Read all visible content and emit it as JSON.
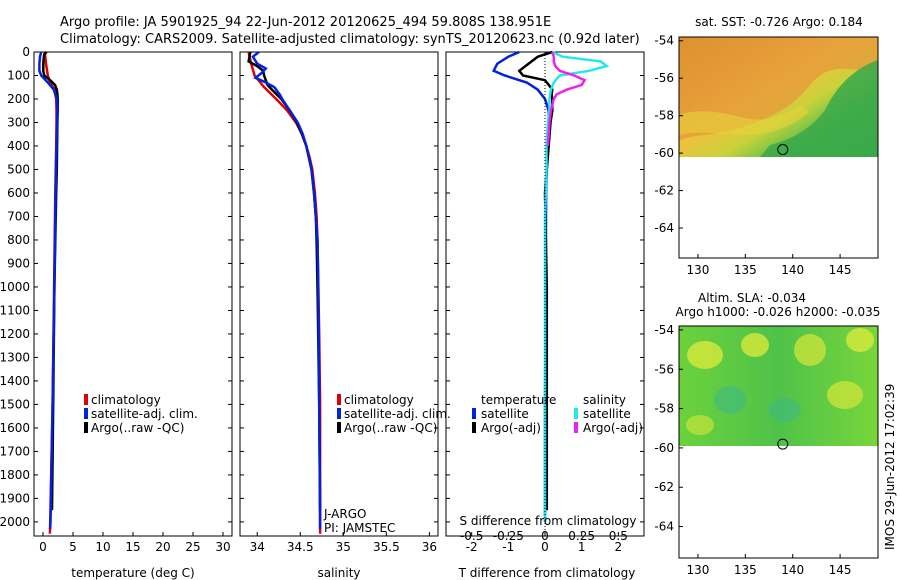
{
  "title_line1": "Argo profile: JA 5901925_94 22-Jun-2012 20120625_494 59.808S 138.951E",
  "title_line2": "Climatology: CARS2009. Satellite-adjusted climatology: synTS_20120623.nc (0.92d later)",
  "side_stamp": "IMOS 29-Jun-2012 17:02:39",
  "colors": {
    "red": "#e00000",
    "blue": "#0022dd",
    "black": "#000000",
    "cyan": "#22e6f0",
    "magenta": "#ee22ee"
  },
  "chart_data": [
    {
      "type": "line",
      "name": "temperature",
      "xlabel": "temperature (deg C)",
      "ylabel": "",
      "xlim": [
        -1.5,
        31.5
      ],
      "ylim": [
        2060,
        0
      ],
      "xticks": [
        0,
        5,
        10,
        15,
        20,
        25,
        30
      ],
      "xtick_labels": [
        "0",
        "5",
        "10",
        "15",
        "20",
        "25",
        "30"
      ],
      "yticks": [
        0,
        100,
        200,
        300,
        400,
        500,
        600,
        700,
        800,
        900,
        1000,
        1100,
        1200,
        1300,
        1400,
        1500,
        1600,
        1700,
        1800,
        1900,
        2000
      ],
      "ytick_labels": [
        "0",
        "100",
        "200",
        "300",
        "400",
        "500",
        "600",
        "700",
        "800",
        "900",
        "1000",
        "1100",
        "1200",
        "1300",
        "1400",
        "1500",
        "1600",
        "1700",
        "1800",
        "1900",
        "2000"
      ],
      "legend": [
        {
          "label": "climatology",
          "color": "red"
        },
        {
          "label": "satellite-adj. clim.",
          "color": "blue"
        },
        {
          "label": "Argo(..raw -QC)",
          "color": "black"
        }
      ],
      "series": [
        {
          "name": "climatology",
          "color": "red",
          "depth": [
            0,
            50,
            100,
            130,
            160,
            200,
            250,
            300,
            400,
            600,
            1000,
            1500,
            2000,
            2050
          ],
          "values": [
            0.3,
            0.5,
            0.8,
            1.2,
            1.9,
            2.2,
            2.25,
            2.25,
            2.2,
            2.05,
            1.85,
            1.6,
            1.2,
            1.15
          ]
        },
        {
          "name": "Argo(..raw -QC)",
          "color": "black",
          "depth": [
            0,
            10,
            30,
            50,
            80,
            100,
            120,
            140,
            160,
            180,
            200,
            250,
            300,
            400,
            500,
            600,
            1000,
            1500,
            1950
          ],
          "values": [
            0.6,
            0.2,
            0.1,
            0.05,
            0.05,
            0.2,
            1.2,
            2.0,
            2.3,
            2.4,
            2.45,
            2.45,
            2.4,
            2.35,
            2.3,
            2.2,
            1.9,
            1.7,
            1.5
          ]
        },
        {
          "name": "satellite-adj. clim.",
          "color": "blue",
          "depth": [
            0,
            20,
            50,
            80,
            100,
            130,
            160,
            200,
            250,
            300,
            400,
            600,
            1000,
            1500,
            2000,
            2030
          ],
          "values": [
            -0.3,
            -0.5,
            -0.6,
            -0.6,
            -0.3,
            0.8,
            1.8,
            2.3,
            2.4,
            2.35,
            2.25,
            2.1,
            1.9,
            1.6,
            1.25,
            1.2
          ]
        }
      ]
    },
    {
      "type": "line",
      "name": "salinity",
      "xlabel": "salinity",
      "ylabel": "",
      "xlim": [
        33.8,
        36.1
      ],
      "ylim": [
        2060,
        0
      ],
      "xticks": [
        34,
        34.5,
        35,
        35.5,
        36
      ],
      "xtick_labels": [
        "34",
        "34.5",
        "35",
        "35.5",
        "36"
      ],
      "legend": [
        {
          "label": "climatology",
          "color": "red"
        },
        {
          "label": "satellite-adj. clim.",
          "color": "blue"
        },
        {
          "label": "Argo(..raw -QC)",
          "color": "black"
        }
      ],
      "annotation_line1": "J-ARGO",
      "annotation_line2": "PI: JAMSTEC",
      "series": [
        {
          "name": "climatology",
          "color": "red",
          "depth": [
            0,
            50,
            100,
            150,
            200,
            250,
            300,
            350,
            400,
            450,
            500,
            600,
            700,
            800,
            1000,
            1200,
            1500,
            2000,
            2050
          ],
          "values": [
            33.9,
            33.93,
            33.97,
            34.08,
            34.22,
            34.35,
            34.45,
            34.52,
            34.57,
            34.61,
            34.64,
            34.67,
            34.69,
            34.7,
            34.71,
            34.72,
            34.73,
            34.73,
            34.73
          ]
        },
        {
          "name": "Argo(..raw -QC)",
          "color": "black",
          "depth": [
            0,
            40,
            60,
            80,
            100,
            120,
            140,
            160,
            200,
            250,
            300,
            350,
            400,
            500,
            600,
            700,
            800,
            1000,
            1500,
            1950
          ],
          "values": [
            33.92,
            33.9,
            34.0,
            34.07,
            34.08,
            34.1,
            34.12,
            34.17,
            34.28,
            34.38,
            34.46,
            34.52,
            34.57,
            34.63,
            34.66,
            34.68,
            34.69,
            34.7,
            34.72,
            34.73
          ]
        },
        {
          "name": "satellite-adj. clim.",
          "color": "blue",
          "depth": [
            0,
            20,
            50,
            70,
            90,
            110,
            130,
            150,
            180,
            200,
            250,
            300,
            350,
            400,
            500,
            600,
            700,
            800,
            1000,
            1500,
            2000,
            2030
          ],
          "values": [
            34.02,
            33.95,
            34.0,
            34.1,
            34.05,
            33.98,
            34.1,
            34.2,
            34.26,
            34.29,
            34.38,
            34.47,
            34.53,
            34.57,
            34.63,
            34.66,
            34.68,
            34.7,
            34.71,
            34.72,
            34.73,
            34.73
          ]
        }
      ]
    },
    {
      "type": "line",
      "name": "difference from climatology",
      "xlabel": "T difference from climatology",
      "xlabel2": "S difference from climatology",
      "xlim": [
        -2.7,
        2.7
      ],
      "ylim": [
        2060,
        0
      ],
      "xticks": [
        -2,
        -1,
        0,
        1,
        2
      ],
      "xtick_labels": [
        "-2",
        "-1",
        "0",
        "1",
        "2"
      ],
      "s_xticks": [
        -0.5,
        -0.25,
        0,
        0.25,
        0.5
      ],
      "s_xtick_labels": [
        "-0.5",
        "-0.25",
        "0",
        "0.25",
        "0.5"
      ],
      "legend_title_t": "temperature",
      "legend_title_s": "salinity",
      "legend": [
        {
          "label": "satellite",
          "color": "blue",
          "group": "t"
        },
        {
          "label": "Argo(-adj)",
          "color": "black",
          "group": "t"
        },
        {
          "label": "satellite",
          "color": "cyan",
          "group": "s"
        },
        {
          "label": "Argo(-adj)",
          "color": "magenta",
          "group": "s"
        }
      ],
      "series": [
        {
          "name": "T satellite",
          "color": "blue",
          "unit": "t",
          "depth": [
            0,
            20,
            50,
            80,
            100,
            130,
            160,
            200,
            250,
            300,
            400,
            500,
            600,
            1000,
            1500,
            2000
          ],
          "values": [
            -0.7,
            -1.0,
            -1.3,
            -1.4,
            -1.1,
            -0.5,
            -0.2,
            0.0,
            0.1,
            0.1,
            0.05,
            0.05,
            0.03,
            0.02,
            0.0,
            0.0
          ]
        },
        {
          "name": "T Argo(-adj)",
          "color": "black",
          "unit": "t",
          "depth": [
            0,
            20,
            50,
            80,
            100,
            120,
            140,
            160,
            180,
            200,
            250,
            300,
            400,
            500,
            600,
            1000,
            1500,
            1950
          ],
          "values": [
            0.2,
            -0.2,
            -0.45,
            -0.7,
            -0.6,
            0.0,
            0.1,
            0.2,
            0.18,
            0.2,
            0.2,
            0.15,
            0.1,
            0.05,
            0.0,
            0.05,
            0.05,
            0.05
          ]
        },
        {
          "name": "S satellite",
          "color": "cyan",
          "unit": "s",
          "depth": [
            0,
            20,
            40,
            60,
            80,
            100,
            130,
            160,
            200,
            250,
            300,
            400,
            500,
            700,
            1000,
            1500,
            2000
          ],
          "values": [
            0.05,
            0.12,
            0.38,
            0.42,
            0.3,
            0.1,
            0.06,
            0.04,
            0.03,
            0.03,
            0.02,
            0.01,
            0.01,
            0.0,
            0.0,
            0.0,
            0.0
          ]
        },
        {
          "name": "S Argo(-adj)",
          "color": "magenta",
          "unit": "s",
          "depth": [
            0,
            20,
            40,
            60,
            80,
            100,
            120,
            140,
            160,
            180,
            200,
            250,
            300,
            400
          ],
          "values": [
            0.05,
            0.06,
            0.06,
            0.07,
            0.1,
            0.2,
            0.27,
            0.25,
            0.15,
            0.08,
            0.06,
            0.04,
            0.03,
            0.02
          ]
        }
      ]
    },
    {
      "type": "heatmap",
      "name": "satellite SST map",
      "title": "sat. SST: -0.726 Argo: 0.184",
      "xlim": [
        128,
        149
      ],
      "ylim": [
        -65.6,
        -53.8
      ],
      "xticks": [
        130,
        135,
        140,
        145
      ],
      "xtick_labels": [
        "130",
        "135",
        "140",
        "145"
      ],
      "yticks": [
        -54,
        -56,
        -58,
        -60,
        -62,
        -64
      ],
      "ytick_labels": [
        "-54",
        "-56",
        "-58",
        "-60",
        "-62",
        "-64"
      ],
      "data_lat_min": -60.1,
      "marker": {
        "lon": 138.951,
        "lat": -59.808
      }
    },
    {
      "type": "heatmap",
      "name": "altimetry SLA map",
      "title_line1": "Altim. SLA: -0.034",
      "title_line2": "Argo h1000: -0.026 h2000: -0.035",
      "xlim": [
        128,
        149
      ],
      "ylim": [
        -65.6,
        -53.8
      ],
      "xticks": [
        130,
        135,
        140,
        145
      ],
      "xtick_labels": [
        "130",
        "135",
        "140",
        "145"
      ],
      "yticks": [
        -54,
        -56,
        -58,
        -60,
        -62,
        -64
      ],
      "ytick_labels": [
        "-54",
        "-56",
        "-58",
        "-60",
        "-62",
        "-64"
      ],
      "data_lat_min": -60.1,
      "marker": {
        "lon": 138.951,
        "lat": -59.808
      }
    }
  ]
}
